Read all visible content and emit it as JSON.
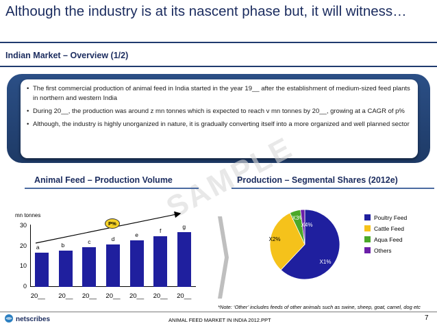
{
  "slide": {
    "title": "Although the industry is at its nascent phase but, it will witness…",
    "section": "Indian Market – Overview (1/2)",
    "watermark": "SAMPLE"
  },
  "overview": {
    "bullets": [
      "The first commercial production of animal feed in India started in the year 19__ after the establishment of medium-sized feed plants in northern and western India",
      "During 20__, the production was around z mn tonnes which is expected to reach v mn tonnes by 20__, growing at a CAGR of p%",
      "Although, the industry is highly unorganized in nature, it is gradually converting itself into a more organized and well planned sector"
    ]
  },
  "chart_data": [
    {
      "type": "bar",
      "title": "Animal Feed – Production Volume",
      "ylabel": "mn tonnes",
      "ylim": [
        0,
        30
      ],
      "yticks": [
        "0",
        "10",
        "20",
        "30"
      ],
      "categories": [
        "20__",
        "20__",
        "20__",
        "20__",
        "20__",
        "20__",
        "20__"
      ],
      "values": [
        17,
        18,
        19.5,
        21,
        23,
        25,
        27
      ],
      "data_labels": [
        "a",
        "b",
        "c",
        "d",
        "e",
        "f",
        "g"
      ],
      "annotation": "P%",
      "color": "#1f1f9e"
    },
    {
      "type": "pie",
      "title": "Production – Segmental Shares (2012e)",
      "slices": [
        {
          "label": "X1%",
          "name": "Poultry Feed",
          "value": 62,
          "color": "#1f1f9e"
        },
        {
          "label": "X2%",
          "name": "Cattle Feed",
          "value": 31,
          "color": "#f5c21b"
        },
        {
          "label": "X3%",
          "name": "Aqua Feed",
          "value": 5,
          "color": "#4aa829"
        },
        {
          "label": "X4%",
          "name": "Others",
          "value": 2,
          "color": "#6b1fa8"
        }
      ]
    }
  ],
  "note": "*Note: ‘Other’ includes feeds of other animals such as swine, sheep, goat, camel, dog etc",
  "footer": {
    "logo": "netscribes",
    "center_text": "ANIMAL FEED MARKET IN INDIA 2012.PPT",
    "page_number": "7"
  }
}
